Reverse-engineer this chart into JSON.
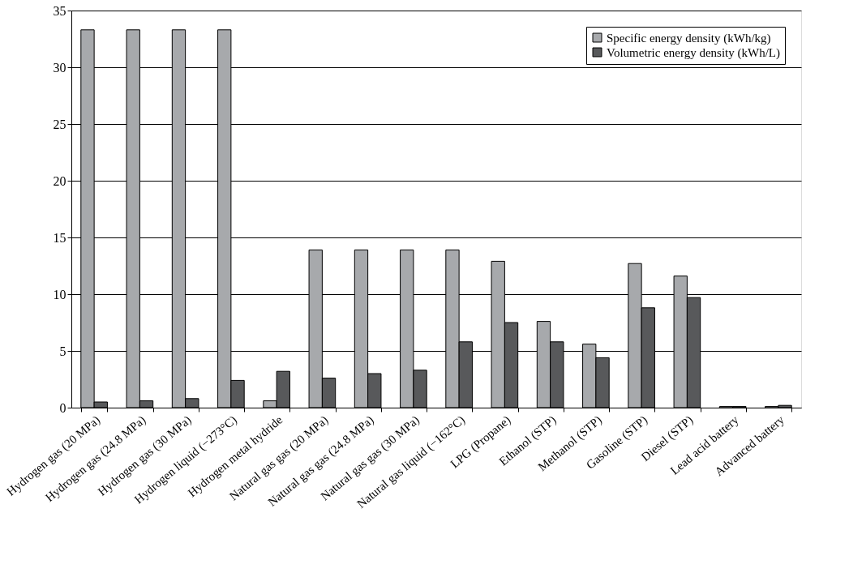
{
  "chart_data": {
    "type": "bar",
    "categories": [
      "Hydrogen gas (20 MPa)",
      "Hydrogen gas (24.8 MPa)",
      "Hydrogen gas (30 MPa)",
      "Hydrogen liquid (−273°C)",
      "Hydrogen metal hydride",
      "Natural gas gas (20 MPa)",
      "Natural gas gas (24.8 MPa)",
      "Natural gas gas (30 MPa)",
      "Natural gas liquid (−162°C)",
      "LPG (Propane)",
      "Ethanol (STP)",
      "Methanol (STP)",
      "Gasoline (STP)",
      "Diesel (STP)",
      "Lead acid battery",
      "Advanced battery"
    ],
    "series": [
      {
        "name": "Specific energy density (kWh/kg)",
        "color": "#a7a9ac",
        "values": [
          33.3,
          33.3,
          33.3,
          33.3,
          0.6,
          13.9,
          13.9,
          13.9,
          13.9,
          12.9,
          7.6,
          5.6,
          12.7,
          11.6,
          0.1,
          0.1
        ]
      },
      {
        "name": "Volumetric energy density (kWh/L)",
        "color": "#58595b",
        "values": [
          0.5,
          0.6,
          0.8,
          2.4,
          3.2,
          2.6,
          3.0,
          3.3,
          5.8,
          7.5,
          5.8,
          4.4,
          8.8,
          9.7,
          0.1,
          0.2
        ]
      }
    ],
    "ylim": [
      0,
      35
    ],
    "yticks": [
      0,
      5,
      10,
      15,
      20,
      25,
      30,
      35
    ],
    "grid": "y",
    "legend": "top right"
  }
}
